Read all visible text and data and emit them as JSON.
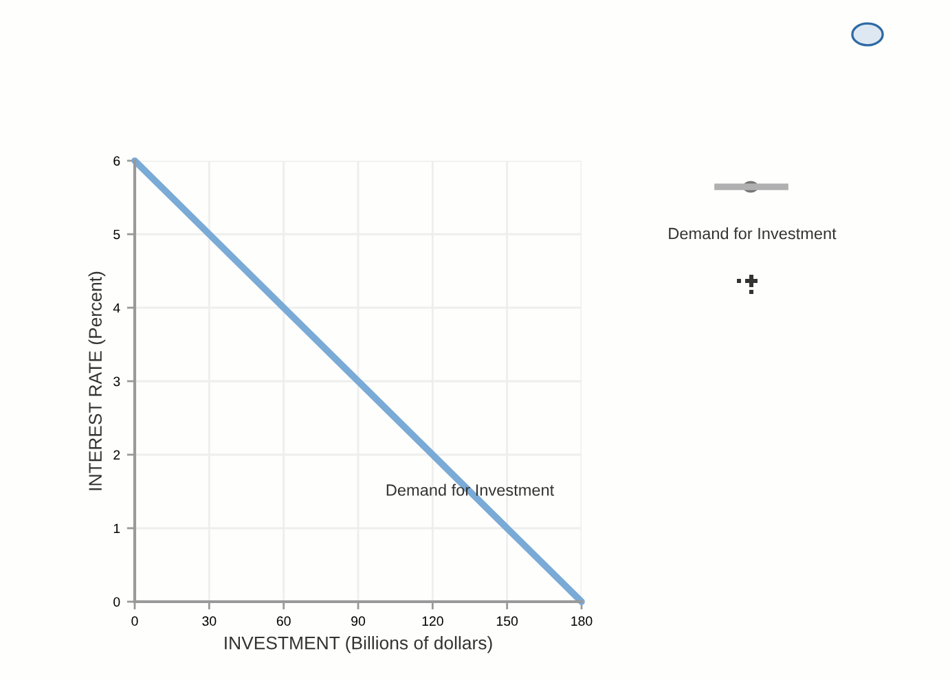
{
  "chart_data": {
    "type": "line",
    "xlabel": "INVESTMENT (Billions of dollars)",
    "ylabel": "INTEREST RATE (Percent)",
    "x": [
      0,
      180
    ],
    "series": [
      {
        "color": "#7aaad6",
        "values": [
          6,
          0
        ]
      }
    ],
    "xlim": [
      0,
      180
    ],
    "ylim": [
      0,
      6
    ],
    "xticks": [
      0,
      30,
      60,
      90,
      120,
      150,
      180
    ],
    "yticks": [
      0,
      1,
      2,
      3,
      4,
      5,
      6
    ],
    "grid": true,
    "marker": "none",
    "line_style": "solid",
    "annotations": [
      {
        "text": "Demand for Investment",
        "x": 135,
        "y": 1.5
      },
      "Demand for Investment"
    ]
  }
}
